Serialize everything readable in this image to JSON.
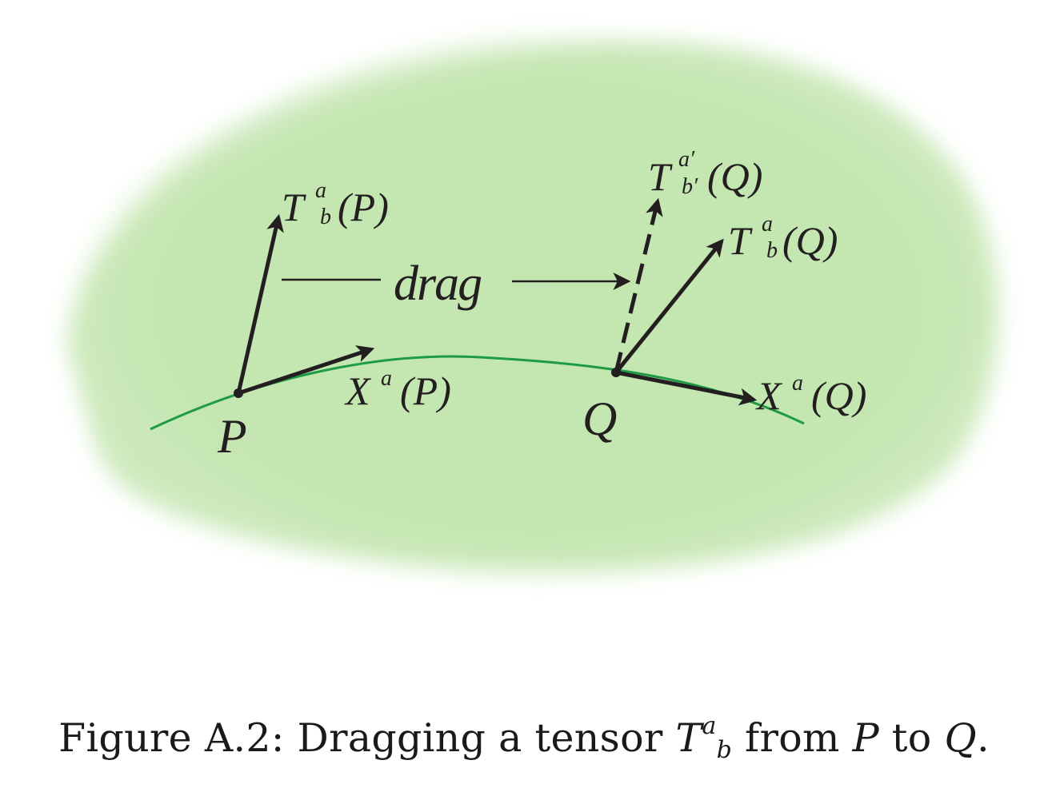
{
  "figure": {
    "point_p": "P",
    "point_q": "Q",
    "drag_label": "drag",
    "tensor_p": {
      "base": "T",
      "sup": "a",
      "sub": "b",
      "arg": "(P)"
    },
    "tensor_q": {
      "base": "T",
      "sup": "a",
      "sub": "b",
      "arg": "(Q)"
    },
    "tensor_q_prime": {
      "base": "T",
      "sup": "a′",
      "sub": "b′",
      "arg": "(Q)"
    },
    "vector_p": {
      "base": "X",
      "sup": "a",
      "arg": "(P)"
    },
    "vector_q": {
      "base": "X",
      "sup": "a",
      "arg": "(Q)"
    },
    "colors": {
      "blob": "#c3e5b0",
      "curve": "#1f9a46",
      "arrow": "#231f20"
    }
  },
  "caption": {
    "prefix": "Figure A.2: Dragging a tensor ",
    "tensor_base": "T",
    "tensor_sup": "a",
    "tensor_sub": "b",
    "middle": " from ",
    "from_point": "P",
    "to_word": " to ",
    "to_point": "Q",
    "suffix": "."
  }
}
